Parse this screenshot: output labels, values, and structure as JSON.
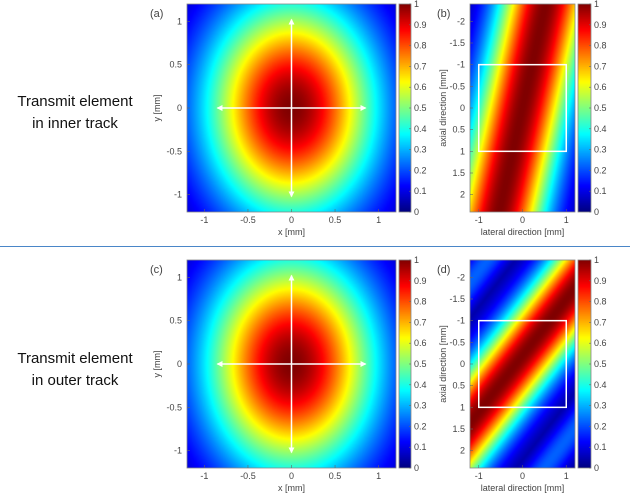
{
  "row_labels": [
    {
      "line1": "Transmit element",
      "line2": "in inner track"
    },
    {
      "line1": "Transmit element",
      "line2": "in outer track"
    }
  ],
  "colors": {
    "divider": "#4a86c8",
    "overlay": "#ffffff",
    "colormap": "jet"
  },
  "chart_data": [
    {
      "type": "heatmap",
      "panel_label": "(a)",
      "xlabel": "x [mm]",
      "ylabel": "y [mm]",
      "xlim": [
        -1.2,
        1.2
      ],
      "ylim": [
        -1.2,
        1.2
      ],
      "y_direction": "normal",
      "xticks": [
        -1,
        -0.5,
        0,
        0.5,
        1
      ],
      "yticks": [
        -1,
        -0.5,
        0,
        0.5,
        1
      ],
      "clim": [
        0,
        1
      ],
      "colorbar_ticks": [
        0,
        0.1,
        0.2,
        0.3,
        0.4,
        0.5,
        0.6,
        0.7,
        0.8,
        0.9,
        1
      ],
      "field": {
        "model": "gaussian2d",
        "sx2": 0.96,
        "sy2": 1.6,
        "peak": 1
      },
      "overlay": {
        "type": "cross-arrows",
        "x_range": [
          -0.85,
          0.85
        ],
        "y_range": [
          -1.02,
          1.02
        ]
      }
    },
    {
      "type": "heatmap",
      "panel_label": "(b)",
      "xlabel": "lateral direction [mm]",
      "ylabel": "axial direction [mm]",
      "xlim": [
        -1.2,
        1.2
      ],
      "ylim": [
        -2.4,
        2.4
      ],
      "y_direction": "reverse",
      "xticks": [
        -1,
        0,
        1
      ],
      "yticks": [
        -2,
        -1.5,
        -1,
        -0.5,
        0,
        0.5,
        1,
        1.5,
        2
      ],
      "clim": [
        0,
        1
      ],
      "colorbar_ticks": [
        0,
        0.1,
        0.2,
        0.3,
        0.4,
        0.5,
        0.6,
        0.7,
        0.8,
        0.9,
        1
      ],
      "field": {
        "model": "band",
        "axial_coef": 0.22,
        "offset": 0.0,
        "width2": 1.15
      },
      "overlay": {
        "type": "box",
        "x_range": [
          -1,
          1
        ],
        "y_range": [
          -1,
          1
        ]
      }
    },
    {
      "type": "heatmap",
      "panel_label": "(c)",
      "xlabel": "x [mm]",
      "ylabel": "y [mm]",
      "xlim": [
        -1.2,
        1.2
      ],
      "ylim": [
        -1.2,
        1.2
      ],
      "y_direction": "normal",
      "xticks": [
        -1,
        -0.5,
        0,
        0.5,
        1
      ],
      "yticks": [
        -1,
        -0.5,
        0,
        0.5,
        1
      ],
      "clim": [
        0,
        1
      ],
      "colorbar_ticks": [
        0,
        0.1,
        0.2,
        0.3,
        0.4,
        0.5,
        0.6,
        0.7,
        0.8,
        0.9,
        1
      ],
      "field": {
        "model": "gaussian2d",
        "sx2": 0.96,
        "sy2": 1.6,
        "peak": 1
      },
      "overlay": {
        "type": "cross-arrows",
        "x_range": [
          -0.85,
          0.85
        ],
        "y_range": [
          -1.02,
          1.02
        ]
      }
    },
    {
      "type": "heatmap",
      "panel_label": "(d)",
      "xlabel": "lateral direction [mm]",
      "ylabel": "axial direction [mm]",
      "xlim": [
        -1.2,
        1.2
      ],
      "ylim": [
        -2.4,
        2.4
      ],
      "y_direction": "reverse",
      "xticks": [
        -1,
        0,
        1
      ],
      "yticks": [
        -2,
        -1.5,
        -1,
        -0.5,
        0,
        0.5,
        1,
        1.5,
        2
      ],
      "clim": [
        0,
        1
      ],
      "colorbar_ticks": [
        0,
        0.1,
        0.2,
        0.3,
        0.4,
        0.5,
        0.6,
        0.7,
        0.8,
        0.9,
        1
      ],
      "field": {
        "model": "band",
        "axial_coef": 0.77,
        "offset": 0.15,
        "width2": 1.1,
        "sidelobe": 0.22
      },
      "overlay": {
        "type": "box",
        "x_range": [
          -1,
          1
        ],
        "y_range": [
          -1,
          1
        ]
      }
    }
  ]
}
